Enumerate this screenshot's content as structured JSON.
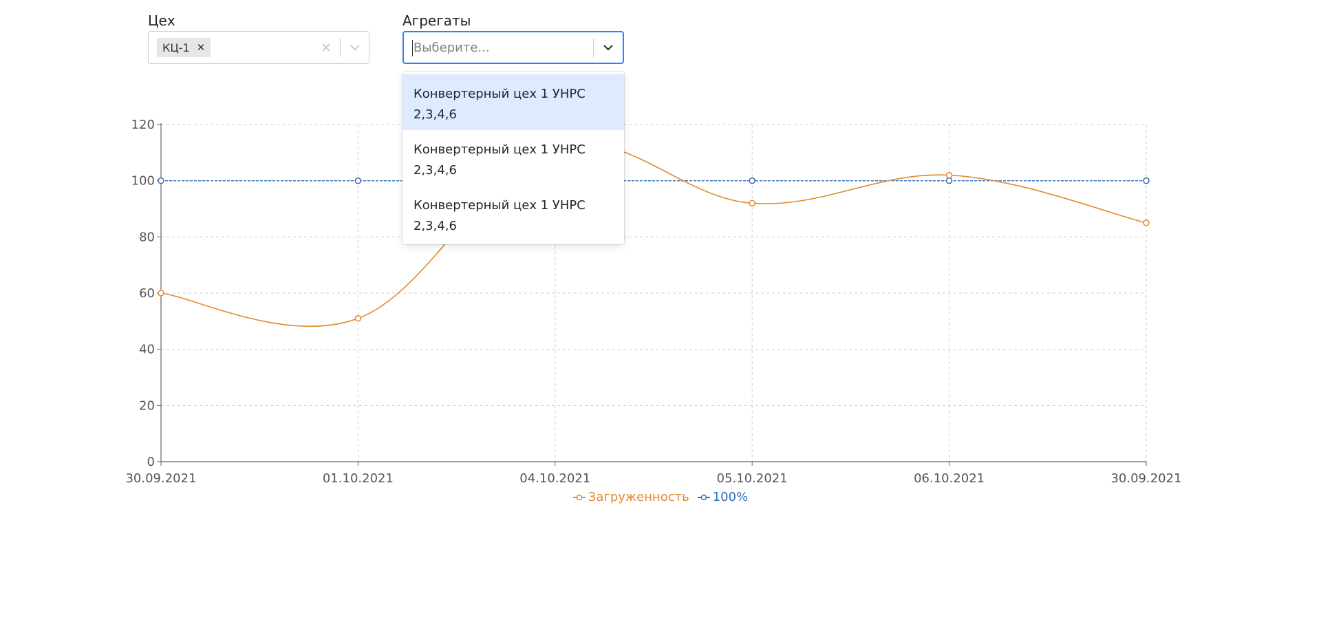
{
  "filters": {
    "workshop": {
      "label": "Цех",
      "selected": [
        "КЦ-1"
      ]
    },
    "units": {
      "label": "Агрегаты",
      "placeholder": "Выберите...",
      "options": [
        {
          "line1": "Конвертерный цех 1 УНРС",
          "line2": "2,3,4,6"
        },
        {
          "line1": "Конвертерный цех 1 УНРС",
          "line2": "2,3,4,6"
        },
        {
          "line1": "Конвертерный цех 1 УНРС",
          "line2": "2,3,4,6"
        }
      ]
    }
  },
  "chart_data": {
    "type": "line",
    "categories": [
      "30.09.2021",
      "01.10.2021",
      "04.10.2021",
      "05.10.2021",
      "06.10.2021",
      "30.09.2021"
    ],
    "series": [
      {
        "name": "Загруженность",
        "values": [
          60,
          51,
          112,
          92,
          102,
          85
        ],
        "color": "#e08a2c",
        "style": "smooth"
      },
      {
        "name": "100%",
        "values": [
          100,
          100,
          100,
          100,
          100,
          100
        ],
        "color": "#2f6db5",
        "style": "dashed"
      }
    ],
    "ylim": [
      0,
      120
    ],
    "yticks": [
      0,
      20,
      40,
      60,
      80,
      100,
      120
    ],
    "grid": true,
    "legend": "bottom-center"
  },
  "colors": {
    "focus_border": "#2684ff",
    "option_active": "#deebff",
    "grid": "#cccccc",
    "axis": "#666666"
  },
  "icons": {
    "clear": "close-icon",
    "dropdown": "chevron-down-icon"
  }
}
